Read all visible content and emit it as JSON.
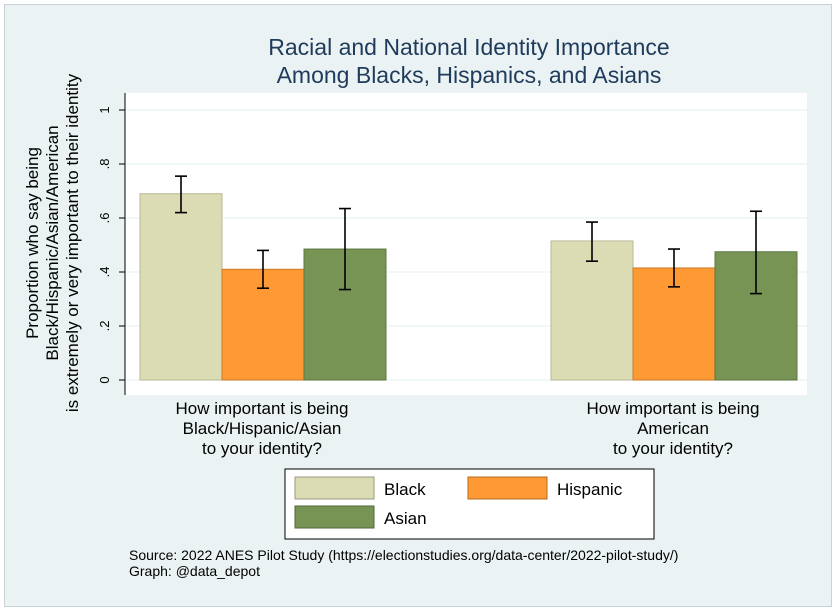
{
  "chart_data": {
    "type": "bar",
    "title": [
      "Racial and National Identity Importance",
      "Among Blacks, Hispanics, and Asians"
    ],
    "ylabel": [
      "Proportion who say being",
      "Black/Hispanic/Asian/American",
      "is extremely or very important to their identity"
    ],
    "ylim": [
      0,
      1
    ],
    "yticks": [
      0,
      0.2,
      0.4,
      0.6,
      0.8,
      1
    ],
    "ytick_labels": [
      "0",
      ".2",
      ".4",
      ".6",
      ".8",
      "1"
    ],
    "grid": true,
    "categories": [
      [
        "How important is being",
        "Black/Hispanic/Asian",
        "to your identity?"
      ],
      [
        "How important is being",
        "American",
        "to your identity?"
      ]
    ],
    "series": [
      {
        "name": "Black",
        "color": "#dcdcb4",
        "values": [
          0.69,
          0.515
        ],
        "ci_low": [
          0.62,
          0.44
        ],
        "ci_high": [
          0.755,
          0.585
        ]
      },
      {
        "name": "Hispanic",
        "color": "#ff9933",
        "values": [
          0.41,
          0.415
        ],
        "ci_low": [
          0.34,
          0.345
        ],
        "ci_high": [
          0.48,
          0.485
        ]
      },
      {
        "name": "Asian",
        "color": "#779454",
        "values": [
          0.485,
          0.475
        ],
        "ci_low": [
          0.335,
          0.32
        ],
        "ci_high": [
          0.635,
          0.625
        ]
      }
    ],
    "legend_position": "bottom",
    "notes": [
      "Source: 2022 ANES Pilot Study (https://electionstudies.org/data-center/2022-pilot-study/)",
      "Graph: @data_depot"
    ]
  }
}
